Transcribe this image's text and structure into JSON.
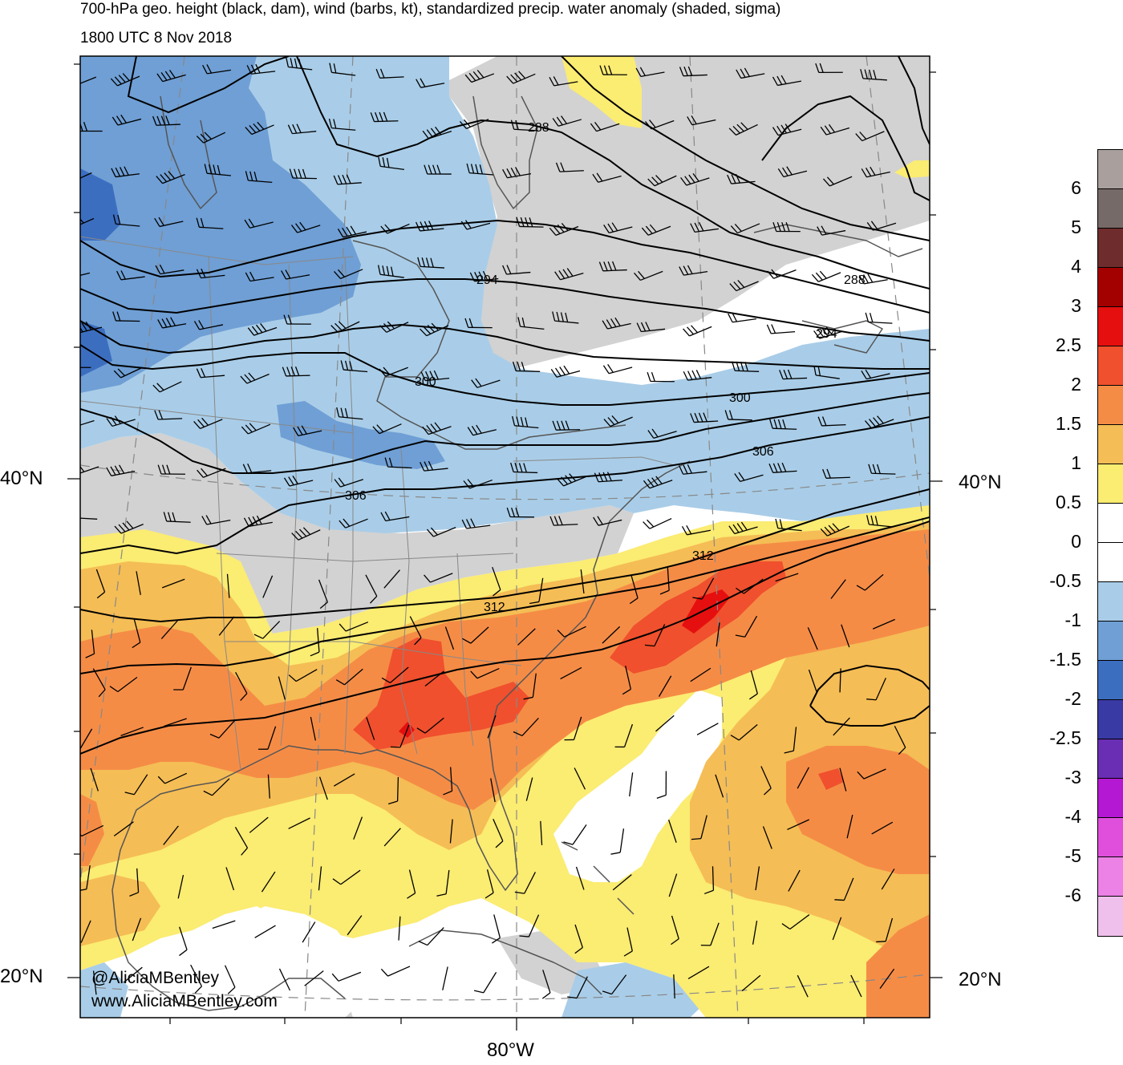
{
  "title": {
    "line1": "700-hPa geo. height (black, dam), wind (barbs, kt), standardized precip. water anomaly (shaded, sigma)",
    "line2": "1800 UTC 8 Nov 2018"
  },
  "credits": {
    "handle": "@AliciaMBentley",
    "website": "www.AliciaMBentley.com"
  },
  "axes": {
    "lat_labels": [
      "40°N",
      "20°N"
    ],
    "lon_labels": [
      "80°W"
    ]
  },
  "contours": {
    "labels": [
      "288",
      "294",
      "300",
      "306",
      "312"
    ],
    "label_instances": [
      {
        "value": "288"
      },
      {
        "value": "288"
      },
      {
        "value": "294"
      },
      {
        "value": "294"
      },
      {
        "value": "300"
      },
      {
        "value": "300"
      },
      {
        "value": "306"
      },
      {
        "value": "306"
      },
      {
        "value": "312"
      },
      {
        "value": "312"
      }
    ]
  },
  "colorbar": {
    "labels": [
      "6",
      "5",
      "4",
      "3",
      "2.5",
      "2",
      "1.5",
      "1",
      "0.5",
      "0",
      "-0.5",
      "-1",
      "-1.5",
      "-2",
      "-2.5",
      "-3",
      "-4",
      "-5",
      "-6"
    ],
    "colors": [
      "#a9a09e",
      "#766a68",
      "#6e2c2c",
      "#a30000",
      "#e60f0f",
      "#f0502d",
      "#f58c46",
      "#f5bd55",
      "#fbec72",
      "#ffffff",
      "#ffffff",
      "#a9cde8",
      "#6f9fd5",
      "#3c6ec0",
      "#3a3aa5",
      "#6a2eb4",
      "#b418d2",
      "#df4fdc",
      "#ec82e6",
      "#f0c0ec"
    ]
  },
  "palette": {
    "neg05": "#a9cde8",
    "neg1": "#6f9fd5",
    "neg15": "#3c6ec0",
    "gray": "#d2d2d2",
    "pos05": "#fbec72",
    "pos1": "#f5bd55",
    "pos15": "#f58c46",
    "pos2": "#f0502d",
    "pos25": "#e60f0f",
    "coast": "#555555",
    "border": "#888888"
  }
}
